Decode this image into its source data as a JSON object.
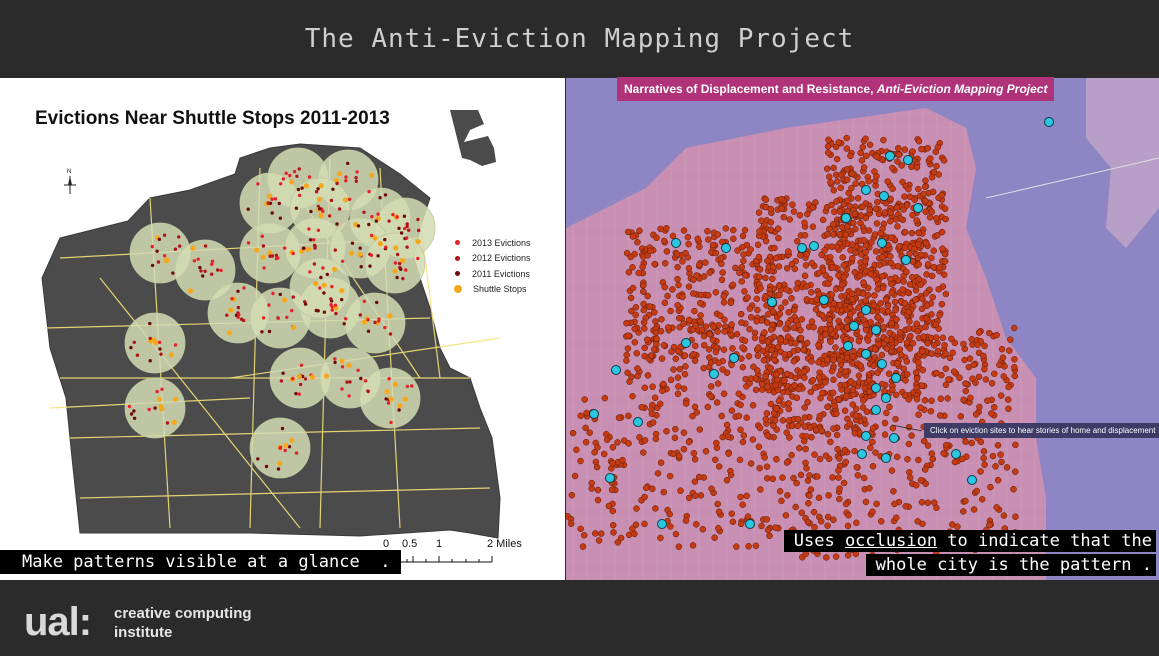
{
  "slide": {
    "title": "The Anti-Eviction Mapping Project"
  },
  "left_map": {
    "title": "Evictions Near Shuttle Stops 2011-2013",
    "legend": [
      {
        "label": "2013 Evictions",
        "color": "#e8202a"
      },
      {
        "label": "2012 Evictions",
        "color": "#b0151a"
      },
      {
        "label": "2011 Evictions",
        "color": "#6e0b0b"
      },
      {
        "label": "Shuttle Stops",
        "color": "#f6a81c"
      }
    ],
    "scale": {
      "labels": [
        "0",
        "0.5",
        "1",
        "2 Miles"
      ]
    },
    "caption_prefix": "Make patterns visible at a glance",
    "caption_suffix": "."
  },
  "right_map": {
    "banner_prefix": "Narratives of Displacement and Resistance, ",
    "banner_italic": "Anti-Eviction Mapping Project",
    "callout": "Click on eviction sites to hear stories of home and displacement",
    "caption_line1_pre": "Uses ",
    "caption_line1_link": "occlusion",
    "caption_line1_post": " to indicate that the",
    "caption_line2": "whole city is the pattern ."
  },
  "footer": {
    "logo": "ual:",
    "line1": "creative computing",
    "line2": "institute"
  },
  "colors": {
    "background": "#2b2b2b",
    "land": "#4b4b4b",
    "water_right": "#8e86c4",
    "eviction_dot": "#c43a12",
    "shuttle_dot_right": "#2bc6e0"
  }
}
